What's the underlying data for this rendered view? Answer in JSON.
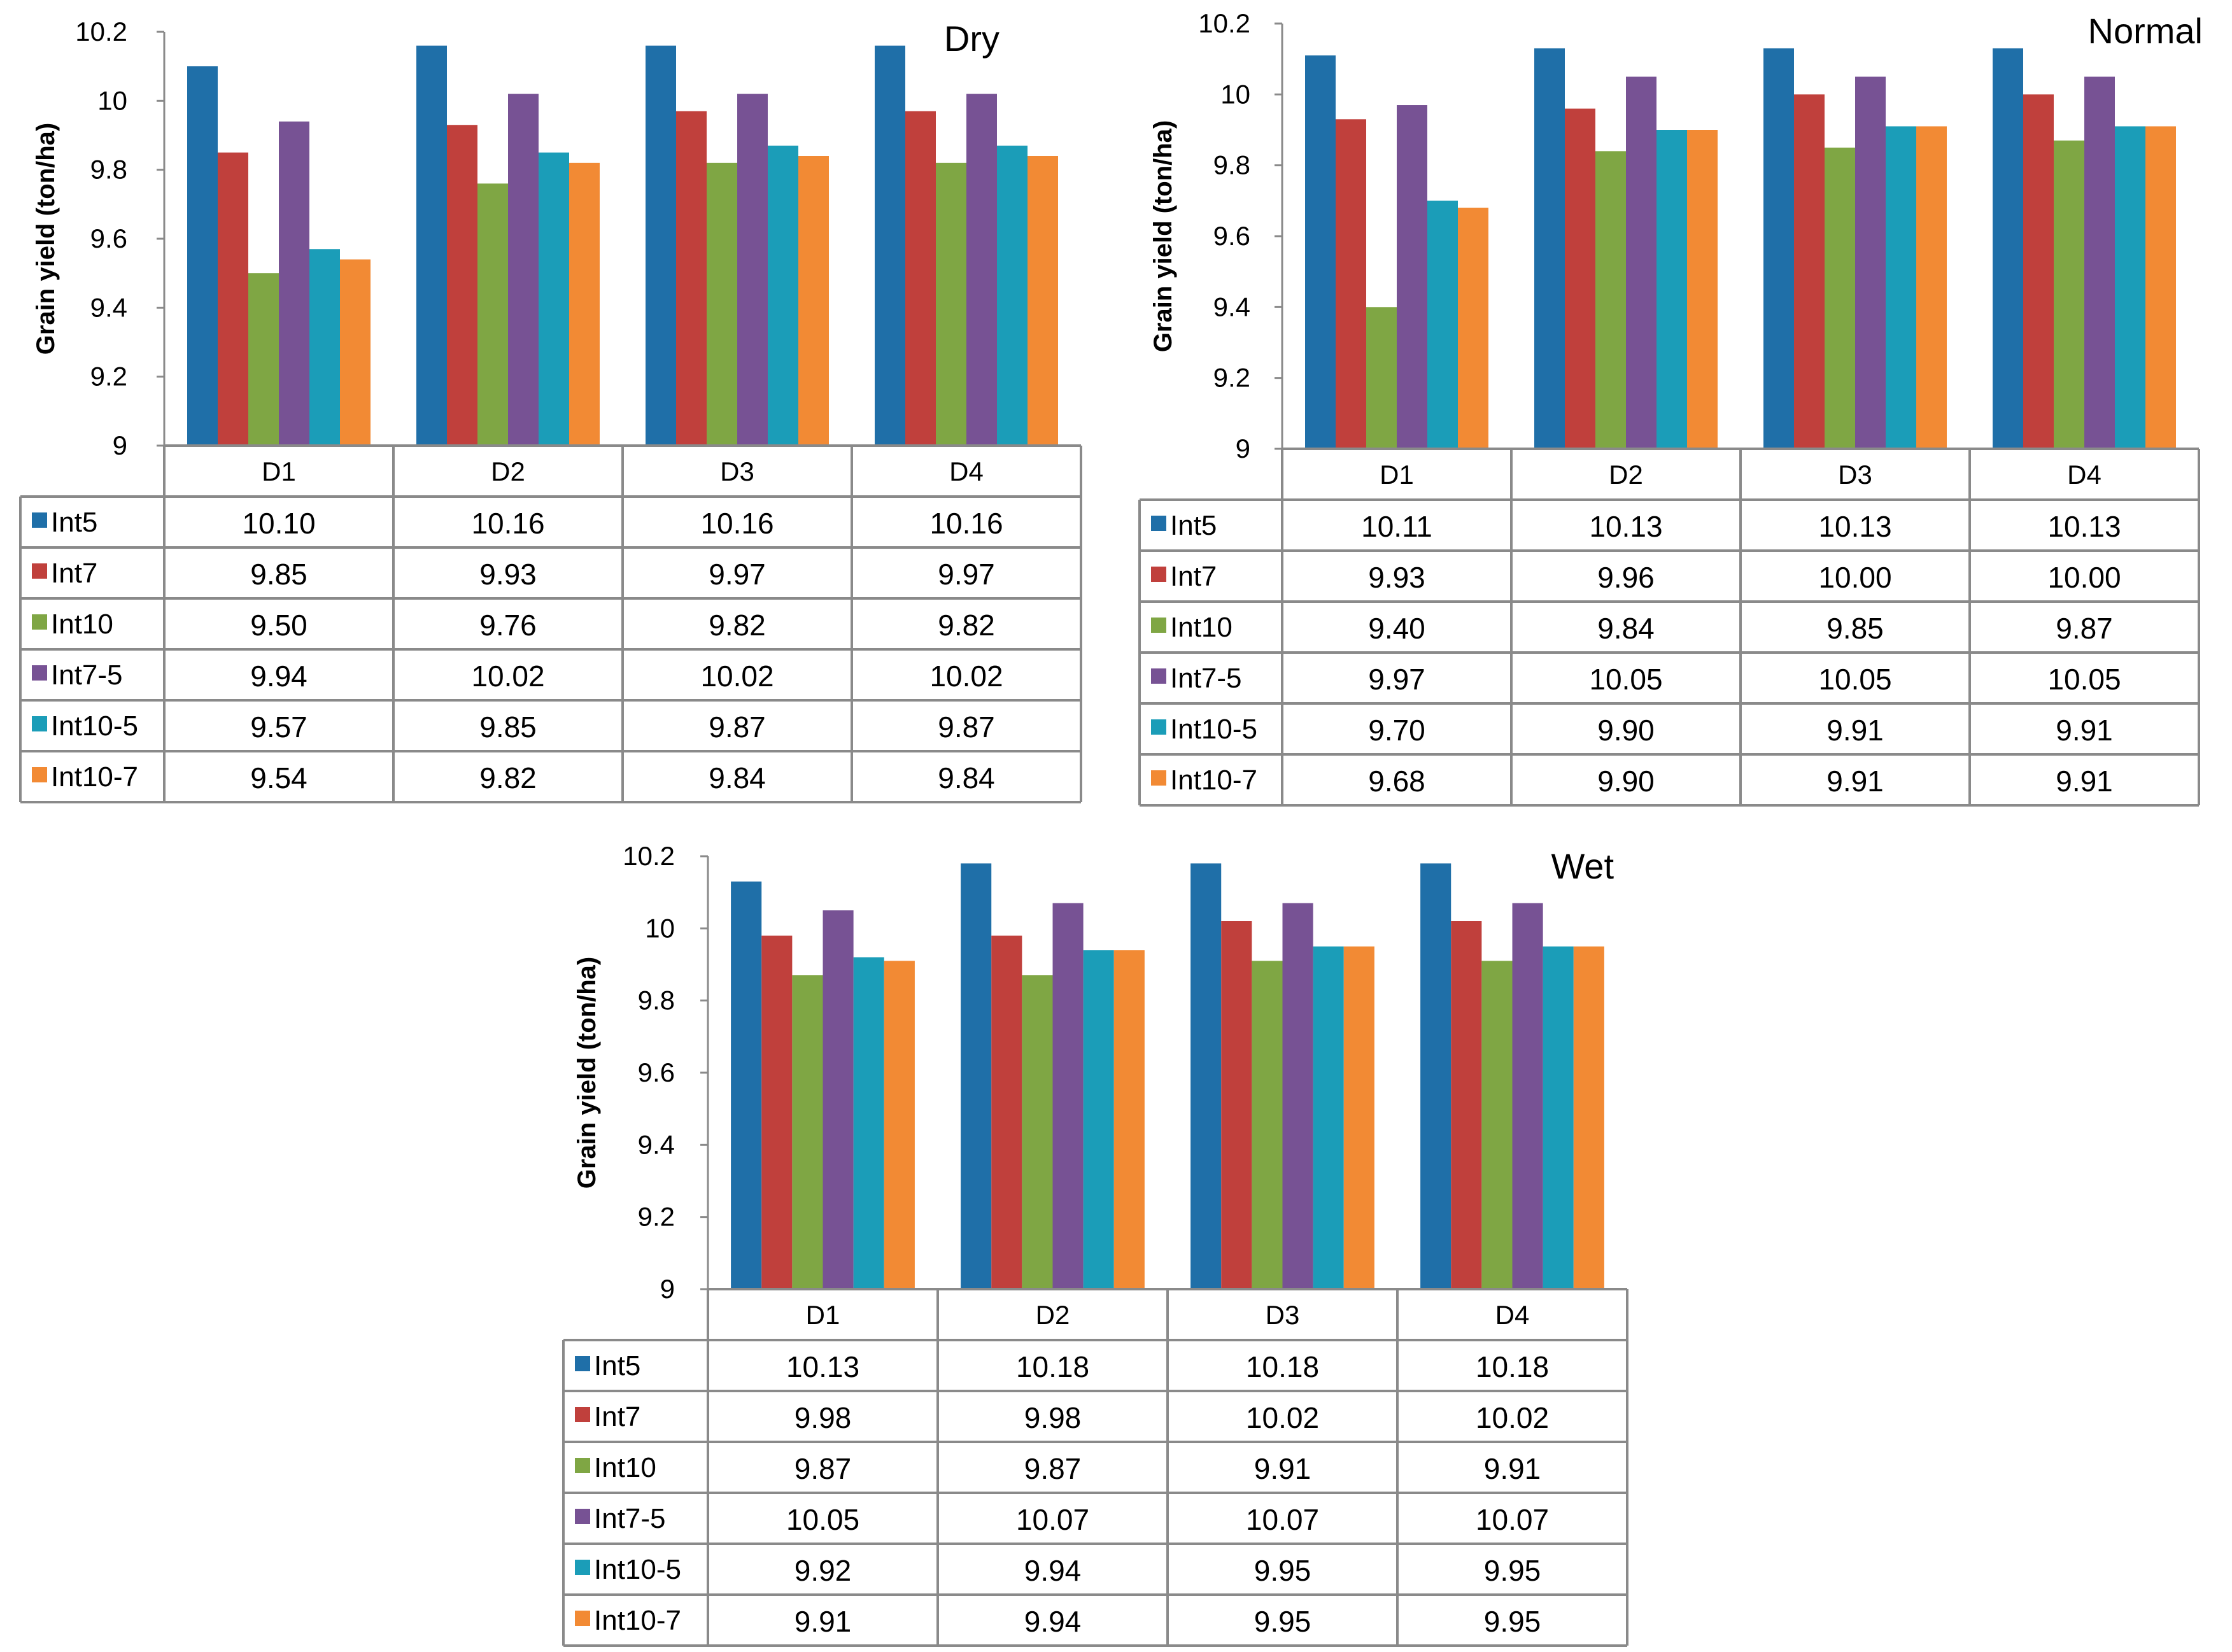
{
  "chart_data": [
    {
      "type": "bar",
      "title": "Dry",
      "ylabel": "Grain yield (ton/ha)",
      "ylim": [
        9,
        10.2
      ],
      "yticks": [
        "9",
        "9.2",
        "9.4",
        "9.6",
        "9.8",
        "10",
        "10.2"
      ],
      "categories": [
        "D1",
        "D2",
        "D3",
        "D4"
      ],
      "series": [
        {
          "name": "Int5",
          "color": "#1F6FA8",
          "values": [
            10.1,
            10.16,
            10.16,
            10.16
          ],
          "labels": [
            "10.10",
            "10.16",
            "10.16",
            "10.16"
          ]
        },
        {
          "name": "Int7",
          "color": "#C0403C",
          "values": [
            9.85,
            9.93,
            9.97,
            9.97
          ],
          "labels": [
            "9.85",
            "9.93",
            "9.97",
            "9.97"
          ]
        },
        {
          "name": "Int10",
          "color": "#7FA644",
          "values": [
            9.5,
            9.76,
            9.82,
            9.82
          ],
          "labels": [
            "9.50",
            "9.76",
            "9.82",
            "9.82"
          ]
        },
        {
          "name": "Int7-5",
          "color": "#775294",
          "values": [
            9.94,
            10.02,
            10.02,
            10.02
          ],
          "labels": [
            "9.94",
            "10.02",
            "10.02",
            "10.02"
          ]
        },
        {
          "name": "Int10-5",
          "color": "#1B9DB8",
          "values": [
            9.57,
            9.85,
            9.87,
            9.87
          ],
          "labels": [
            "9.57",
            "9.85",
            "9.87",
            "9.87"
          ]
        },
        {
          "name": "Int10-7",
          "color": "#F28A34",
          "values": [
            9.54,
            9.82,
            9.84,
            9.84
          ],
          "labels": [
            "9.54",
            "9.82",
            "9.84",
            "9.84"
          ]
        }
      ]
    },
    {
      "type": "bar",
      "title": "Normal",
      "ylabel": "Grain yield (ton/ha)",
      "ylim": [
        9,
        10.2
      ],
      "yticks": [
        "9",
        "9.2",
        "9.4",
        "9.6",
        "9.8",
        "10",
        "10.2"
      ],
      "categories": [
        "D1",
        "D2",
        "D3",
        "D4"
      ],
      "series": [
        {
          "name": "Int5",
          "color": "#1F6FA8",
          "values": [
            10.11,
            10.13,
            10.13,
            10.13
          ],
          "labels": [
            "10.11",
            "10.13",
            "10.13",
            "10.13"
          ]
        },
        {
          "name": "Int7",
          "color": "#C0403C",
          "values": [
            9.93,
            9.96,
            10.0,
            10.0
          ],
          "labels": [
            "9.93",
            "9.96",
            "10.00",
            "10.00"
          ]
        },
        {
          "name": "Int10",
          "color": "#7FA644",
          "values": [
            9.4,
            9.84,
            9.85,
            9.87
          ],
          "labels": [
            "9.40",
            "9.84",
            "9.85",
            "9.87"
          ]
        },
        {
          "name": "Int7-5",
          "color": "#775294",
          "values": [
            9.97,
            10.05,
            10.05,
            10.05
          ],
          "labels": [
            "9.97",
            "10.05",
            "10.05",
            "10.05"
          ]
        },
        {
          "name": "Int10-5",
          "color": "#1B9DB8",
          "values": [
            9.7,
            9.9,
            9.91,
            9.91
          ],
          "labels": [
            "9.70",
            "9.90",
            "9.91",
            "9.91"
          ]
        },
        {
          "name": "Int10-7",
          "color": "#F28A34",
          "values": [
            9.68,
            9.9,
            9.91,
            9.91
          ],
          "labels": [
            "9.68",
            "9.90",
            "9.91",
            "9.91"
          ]
        }
      ]
    },
    {
      "type": "bar",
      "title": "Wet",
      "ylabel": "Grain yield (ton/ha)",
      "ylim": [
        9,
        10.2
      ],
      "yticks": [
        "9",
        "9.2",
        "9.4",
        "9.6",
        "9.8",
        "10",
        "10.2"
      ],
      "categories": [
        "D1",
        "D2",
        "D3",
        "D4"
      ],
      "series": [
        {
          "name": "Int5",
          "color": "#1F6FA8",
          "values": [
            10.13,
            10.18,
            10.18,
            10.18
          ],
          "labels": [
            "10.13",
            "10.18",
            "10.18",
            "10.18"
          ]
        },
        {
          "name": "Int7",
          "color": "#C0403C",
          "values": [
            9.98,
            9.98,
            10.02,
            10.02
          ],
          "labels": [
            "9.98",
            "9.98",
            "10.02",
            "10.02"
          ]
        },
        {
          "name": "Int10",
          "color": "#7FA644",
          "values": [
            9.87,
            9.87,
            9.91,
            9.91
          ],
          "labels": [
            "9.87",
            "9.87",
            "9.91",
            "9.91"
          ]
        },
        {
          "name": "Int7-5",
          "color": "#775294",
          "values": [
            10.05,
            10.07,
            10.07,
            10.07
          ],
          "labels": [
            "10.05",
            "10.07",
            "10.07",
            "10.07"
          ]
        },
        {
          "name": "Int10-5",
          "color": "#1B9DB8",
          "values": [
            9.92,
            9.94,
            9.95,
            9.95
          ],
          "labels": [
            "9.92",
            "9.94",
            "9.95",
            "9.95"
          ]
        },
        {
          "name": "Int10-7",
          "color": "#F28A34",
          "values": [
            9.91,
            9.94,
            9.95,
            9.95
          ],
          "labels": [
            "9.91",
            "9.94",
            "9.95",
            "9.95"
          ]
        }
      ]
    }
  ]
}
